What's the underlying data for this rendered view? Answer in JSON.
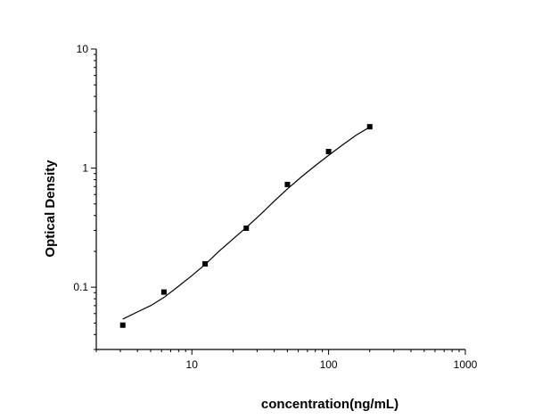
{
  "chart_data": {
    "type": "scatter",
    "xlabel": "concentration(ng/mL)",
    "ylabel": "Optical Density",
    "x_scale": "log",
    "y_scale": "log",
    "xlim": [
      2,
      1000
    ],
    "ylim": [
      0.03,
      10
    ],
    "x_ticks": [
      10,
      100,
      1000
    ],
    "x_tick_labels": [
      "10",
      "100",
      "1000"
    ],
    "y_ticks": [
      0.1,
      1,
      10
    ],
    "y_tick_labels": [
      "0.1",
      "1",
      "10"
    ],
    "grid": false,
    "legend": "none",
    "series": [
      {
        "marker": "square",
        "x": [
          3.125,
          6.25,
          12.5,
          25,
          50,
          100,
          200
        ],
        "y": [
          0.048,
          0.091,
          0.157,
          0.313,
          0.729,
          1.377,
          2.226
        ]
      }
    ],
    "fit_curve": {
      "type": "4PL",
      "x": [
        3.125,
        4,
        5,
        6.25,
        8,
        10,
        12.5,
        16,
        20,
        25,
        32,
        40,
        50,
        63,
        80,
        100,
        125,
        160,
        200
      ],
      "y": [
        0.054,
        0.062,
        0.07,
        0.082,
        0.102,
        0.125,
        0.155,
        0.203,
        0.254,
        0.317,
        0.412,
        0.527,
        0.668,
        0.841,
        1.05,
        1.28,
        1.55,
        1.9,
        2.21
      ]
    }
  }
}
